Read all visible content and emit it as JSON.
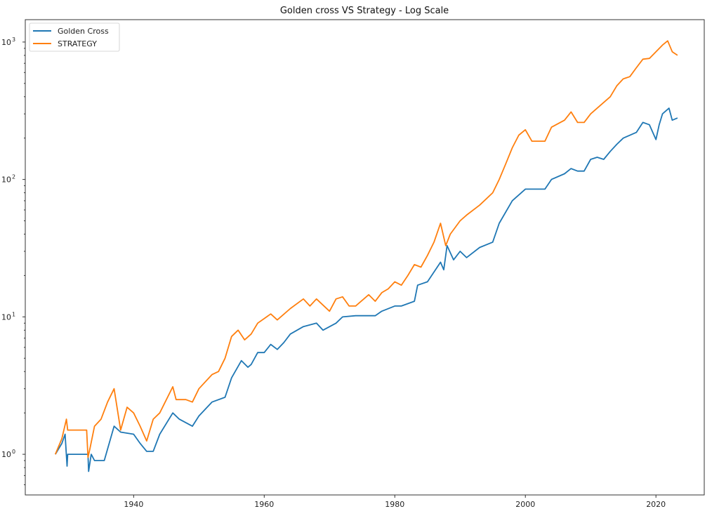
{
  "chart_data": {
    "type": "line",
    "title": "Golden cross VS Strategy - Log Scale",
    "xlabel": "",
    "ylabel": "",
    "yscale": "log",
    "xlim": [
      1923.4,
      2027.4
    ],
    "ylim": [
      0.506,
      1455
    ],
    "x_ticks": [
      1940,
      1960,
      1980,
      2000,
      2020
    ],
    "x_tick_labels": [
      "1940",
      "1960",
      "1980",
      "2000",
      "2020"
    ],
    "y_ticks": [
      1,
      10,
      100,
      1000
    ],
    "y_tick_labels": [
      {
        "base": "10",
        "exp": "0"
      },
      {
        "base": "10",
        "exp": "1"
      },
      {
        "base": "10",
        "exp": "2"
      },
      {
        "base": "10",
        "exp": "3"
      }
    ],
    "grid": false,
    "legend_position": "top-left",
    "colors": {
      "Golden Cross": "#1f77b4",
      "STRATEGY": "#ff7f0e"
    },
    "series": [
      {
        "name": "Golden Cross",
        "points": [
          [
            1928,
            1.0
          ],
          [
            1929,
            1.2
          ],
          [
            1929.5,
            1.4
          ],
          [
            1929.8,
            0.82
          ],
          [
            1929.9,
            1.0
          ],
          [
            1933,
            1.0
          ],
          [
            1933.1,
            0.75
          ],
          [
            1933.5,
            1.0
          ],
          [
            1934,
            0.9
          ],
          [
            1935.5,
            0.9
          ],
          [
            1937,
            1.6
          ],
          [
            1938,
            1.45
          ],
          [
            1940,
            1.4
          ],
          [
            1941,
            1.2
          ],
          [
            1942,
            1.05
          ],
          [
            1943,
            1.05
          ],
          [
            1944,
            1.4
          ],
          [
            1946,
            2.0
          ],
          [
            1947,
            1.8
          ],
          [
            1949,
            1.6
          ],
          [
            1950,
            1.9
          ],
          [
            1952,
            2.4
          ],
          [
            1954,
            2.6
          ],
          [
            1955,
            3.6
          ],
          [
            1956.5,
            4.8
          ],
          [
            1957.5,
            4.3
          ],
          [
            1958,
            4.5
          ],
          [
            1959,
            5.5
          ],
          [
            1960,
            5.5
          ],
          [
            1961,
            6.3
          ],
          [
            1962,
            5.8
          ],
          [
            1963,
            6.5
          ],
          [
            1964,
            7.5
          ],
          [
            1966,
            8.5
          ],
          [
            1968,
            9.0
          ],
          [
            1969,
            8.0
          ],
          [
            1971,
            9.0
          ],
          [
            1972,
            10
          ],
          [
            1974,
            10.2
          ],
          [
            1977,
            10.2
          ],
          [
            1978,
            11
          ],
          [
            1980,
            12
          ],
          [
            1981,
            12
          ],
          [
            1983,
            13
          ],
          [
            1983.5,
            17
          ],
          [
            1985,
            18
          ],
          [
            1987,
            25
          ],
          [
            1987.5,
            22
          ],
          [
            1988,
            33
          ],
          [
            1989,
            26
          ],
          [
            1990,
            30
          ],
          [
            1991,
            27
          ],
          [
            1993,
            32
          ],
          [
            1995,
            35
          ],
          [
            1996,
            48
          ],
          [
            1998,
            70
          ],
          [
            2000,
            85
          ],
          [
            2001,
            85
          ],
          [
            2003,
            85
          ],
          [
            2004,
            100
          ],
          [
            2006,
            110
          ],
          [
            2007,
            120
          ],
          [
            2008,
            115
          ],
          [
            2009,
            115
          ],
          [
            2010,
            140
          ],
          [
            2011,
            145
          ],
          [
            2012,
            140
          ],
          [
            2013,
            160
          ],
          [
            2014,
            180
          ],
          [
            2015,
            200
          ],
          [
            2017,
            220
          ],
          [
            2018,
            260
          ],
          [
            2019,
            250
          ],
          [
            2020,
            195
          ],
          [
            2020.5,
            250
          ],
          [
            2021,
            300
          ],
          [
            2022,
            330
          ],
          [
            2022.5,
            270
          ],
          [
            2023.3,
            280
          ]
        ]
      },
      {
        "name": "STRATEGY",
        "points": [
          [
            1928,
            1.0
          ],
          [
            1929,
            1.3
          ],
          [
            1929.7,
            1.8
          ],
          [
            1929.9,
            1.5
          ],
          [
            1932.8,
            1.5
          ],
          [
            1933,
            0.95
          ],
          [
            1933.3,
            1.1
          ],
          [
            1934,
            1.6
          ],
          [
            1935,
            1.8
          ],
          [
            1936,
            2.4
          ],
          [
            1937,
            3.0
          ],
          [
            1938,
            1.5
          ],
          [
            1939,
            2.2
          ],
          [
            1940,
            2.0
          ],
          [
            1941,
            1.6
          ],
          [
            1942,
            1.25
          ],
          [
            1943,
            1.8
          ],
          [
            1944,
            2.0
          ],
          [
            1946,
            3.1
          ],
          [
            1946.5,
            2.5
          ],
          [
            1948,
            2.5
          ],
          [
            1949,
            2.4
          ],
          [
            1950,
            3.0
          ],
          [
            1952,
            3.8
          ],
          [
            1953,
            4.0
          ],
          [
            1954,
            5.0
          ],
          [
            1955,
            7.2
          ],
          [
            1956,
            8.0
          ],
          [
            1957,
            6.8
          ],
          [
            1958,
            7.5
          ],
          [
            1959,
            9.0
          ],
          [
            1961,
            10.5
          ],
          [
            1962,
            9.5
          ],
          [
            1964,
            11.5
          ],
          [
            1966,
            13.5
          ],
          [
            1967,
            12
          ],
          [
            1968,
            13.5
          ],
          [
            1970,
            11
          ],
          [
            1971,
            13.5
          ],
          [
            1972,
            14
          ],
          [
            1973,
            12
          ],
          [
            1974,
            12
          ],
          [
            1976,
            14.5
          ],
          [
            1977,
            13
          ],
          [
            1978,
            15
          ],
          [
            1979,
            16
          ],
          [
            1980,
            18
          ],
          [
            1981,
            17
          ],
          [
            1982,
            20
          ],
          [
            1983,
            24
          ],
          [
            1984,
            23
          ],
          [
            1985,
            28
          ],
          [
            1986,
            35
          ],
          [
            1987,
            48
          ],
          [
            1987.8,
            33
          ],
          [
            1988.5,
            40
          ],
          [
            1990,
            50
          ],
          [
            1991,
            55
          ],
          [
            1993,
            65
          ],
          [
            1995,
            80
          ],
          [
            1996,
            100
          ],
          [
            1997,
            130
          ],
          [
            1998,
            170
          ],
          [
            1999,
            210
          ],
          [
            2000,
            230
          ],
          [
            2001,
            190
          ],
          [
            2003,
            190
          ],
          [
            2004,
            240
          ],
          [
            2006,
            270
          ],
          [
            2007,
            310
          ],
          [
            2008,
            260
          ],
          [
            2009,
            260
          ],
          [
            2010,
            300
          ],
          [
            2011,
            330
          ],
          [
            2013,
            400
          ],
          [
            2014,
            480
          ],
          [
            2015,
            540
          ],
          [
            2016,
            560
          ],
          [
            2017,
            650
          ],
          [
            2018,
            750
          ],
          [
            2019,
            760
          ],
          [
            2020,
            850
          ],
          [
            2021,
            950
          ],
          [
            2021.8,
            1020
          ],
          [
            2022.5,
            850
          ],
          [
            2023.3,
            800
          ]
        ]
      }
    ]
  }
}
